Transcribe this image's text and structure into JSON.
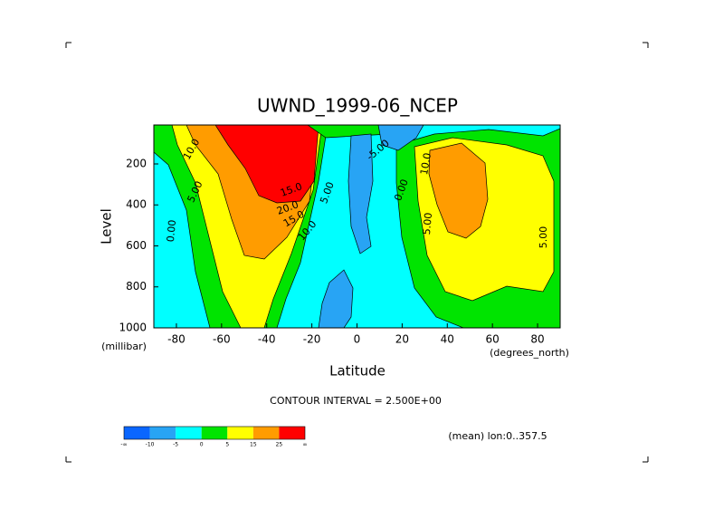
{
  "chart_data": {
    "type": "contour",
    "title": "UWND_1999-06_NCEP",
    "xlabel": "Latitude",
    "ylabel": "Level",
    "xunits": "(degrees_north)",
    "yunits": "(millibar)",
    "xlim": [
      -90,
      90
    ],
    "xticks": [
      -80,
      -60,
      -40,
      -20,
      0,
      20,
      40,
      60,
      80
    ],
    "ylim": [
      1000,
      10
    ],
    "yticks": [
      200,
      400,
      600,
      800,
      1000
    ],
    "contour_interval": "CONTOUR INTERVAL = 2.500E+00",
    "annotation": "(mean) lon:0..357.5",
    "contour_labels": [
      {
        "value": 10,
        "label": "10.0"
      },
      {
        "value": 5,
        "label": "5.00"
      },
      {
        "value": 0,
        "label": "0.00"
      },
      {
        "value": 15,
        "label": "15.0"
      },
      {
        "value": 20,
        "label": "20.0"
      },
      {
        "value": 15,
        "label": "15.0"
      },
      {
        "value": 10,
        "label": "10.0"
      },
      {
        "value": 5,
        "label": "5.00"
      },
      {
        "value": -5,
        "label": "-5.00"
      },
      {
        "value": 0,
        "label": "0.00"
      },
      {
        "value": 10,
        "label": "10.0"
      },
      {
        "value": 5,
        "label": "5.00"
      },
      {
        "value": 5,
        "label": "5.00"
      }
    ],
    "colorbar": {
      "colors": [
        "#0a66ff",
        "#28a4f4",
        "#00ffff",
        "#00e400",
        "#ffff00",
        "#ff9c00",
        "#ff0000"
      ],
      "ticks": [
        {
          "label": "-∞"
        },
        -10,
        -5,
        0,
        5,
        15,
        25,
        {
          "label": "∞"
        }
      ]
    }
  }
}
